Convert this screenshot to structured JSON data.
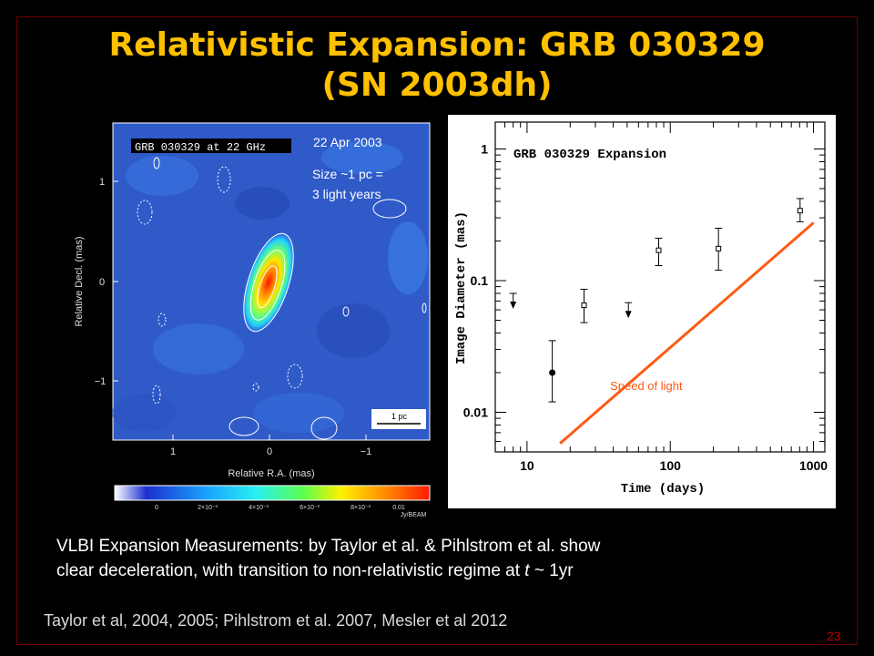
{
  "slide": {
    "title_line1": "Relativistic Expansion: GRB 030329",
    "title_line2": "(SN 2003dh)",
    "caption_line1": "VLBI Expansion Measurements:  by Taylor et al. & Pihlstrom et al. show",
    "caption_line2_prefix": "clear deceleration, with transition to non-relativistic regime at ",
    "caption_line2_var": "t",
    "caption_line2_suffix": " ~ 1yr",
    "references": "Taylor et al, 2004, 2005; Pihlstrom et al. 2007, Mesler et al 2012",
    "page_number": "23"
  },
  "image_panel": {
    "label": "GRB 030329 at 22 GHz",
    "date": "22 Apr 2003",
    "size_note_line1": "Size ~1 pc =",
    "size_note_line2": "3 light years",
    "scale_bar_label": "1 pc",
    "x_axis_label": "Relative R.A. (mas)",
    "y_axis_label": "Relative Decl. (mas)",
    "x_ticks": [
      "1",
      "0",
      "−1"
    ],
    "y_ticks": [
      "1",
      "0",
      "−1"
    ],
    "colorbar_ticks": [
      "0",
      "2×10⁻³",
      "4×10⁻³",
      "6×10⁻³",
      "8×10⁻³",
      "0.01"
    ],
    "colorbar_unit": "Jy/BEAM",
    "colors": {
      "background": "#2f5ac8",
      "peak": "#ff2a00",
      "contour": "#ffffff"
    }
  },
  "chart_data": {
    "type": "scatter",
    "title": "GRB 030329 Expansion",
    "xlabel": "Time (days)",
    "ylabel": "Image Diameter (mas)",
    "xscale": "log",
    "yscale": "log",
    "xlim": [
      6,
      1200
    ],
    "ylim": [
      0.005,
      1.6
    ],
    "x_tick_labels": [
      "10",
      "100",
      "1000"
    ],
    "y_tick_labels": [
      "0.01",
      "0.1",
      "1"
    ],
    "measurements": [
      {
        "x": 15,
        "y": 0.02,
        "err_low": 0.012,
        "err_high": 0.035,
        "marker": "filled-circle"
      },
      {
        "x": 25,
        "y": 0.065,
        "err_low": 0.048,
        "err_high": 0.086,
        "marker": "open-square"
      },
      {
        "x": 83,
        "y": 0.17,
        "err_low": 0.13,
        "err_high": 0.21,
        "marker": "open-square"
      },
      {
        "x": 217,
        "y": 0.175,
        "err_low": 0.12,
        "err_high": 0.25,
        "marker": "open-square"
      },
      {
        "x": 806,
        "y": 0.34,
        "err_low": 0.28,
        "err_high": 0.42,
        "marker": "open-square"
      }
    ],
    "upper_limits": [
      {
        "x": 8,
        "y": 0.08
      },
      {
        "x": 51,
        "y": 0.068
      }
    ],
    "speed_of_light_line": {
      "label": "Speed of light",
      "x": [
        17,
        1000
      ],
      "y": [
        0.0058,
        0.275
      ],
      "color": "#ff5a14"
    }
  }
}
